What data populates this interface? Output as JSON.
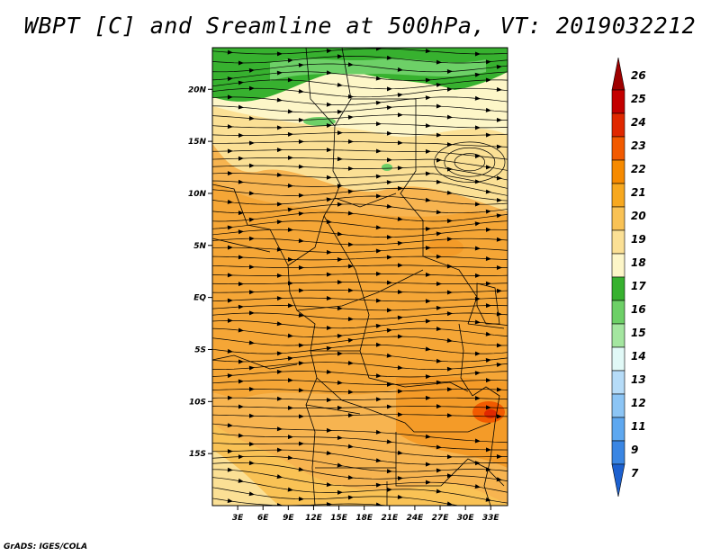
{
  "title": "WBPT [C] and Sreamline at 500hPa, VT: 2019032212",
  "footer": "GrADS: IGES/COLA",
  "map": {
    "lon_range": [
      0,
      35
    ],
    "lat_range": [
      -20,
      24
    ],
    "x_ticks": [
      "3E",
      "6E",
      "9E",
      "12E",
      "15E",
      "18E",
      "21E",
      "24E",
      "27E",
      "30E",
      "33E"
    ],
    "x_tick_values": [
      3,
      6,
      9,
      12,
      15,
      18,
      21,
      24,
      27,
      30,
      33
    ],
    "y_ticks": [
      "20N",
      "15N",
      "10N",
      "5N",
      "EQ",
      "5S",
      "10S",
      "15S"
    ],
    "y_tick_values": [
      20,
      15,
      10,
      5,
      0,
      -5,
      -10,
      -15
    ],
    "field": "wet bulb potential temperature",
    "dominant_flow": "westerly"
  },
  "colorbar": {
    "labels": [
      "26",
      "25",
      "24",
      "23",
      "22",
      "21",
      "20",
      "19",
      "18",
      "17",
      "16",
      "15",
      "14",
      "13",
      "12",
      "11",
      "9",
      "7"
    ],
    "colors": [
      "#9e0000",
      "#c30000",
      "#e02800",
      "#f25a00",
      "#f68a00",
      "#f7a81f",
      "#f9c255",
      "#fbe095",
      "#fdf6c8",
      "#37b12f",
      "#6dd067",
      "#a4e6a0",
      "#e1f9f7",
      "#b6dcf8",
      "#8cc5f5",
      "#5ea8f0",
      "#3a86e3",
      "#1c60cf"
    ]
  }
}
